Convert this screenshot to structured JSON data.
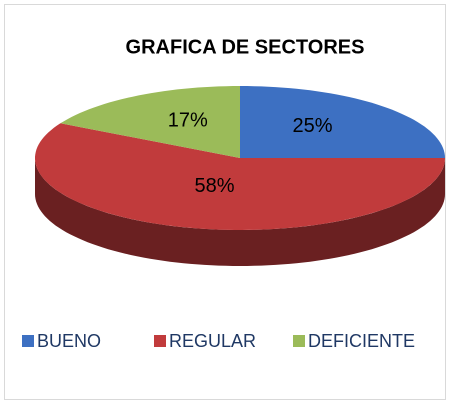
{
  "chart_data": {
    "type": "pie",
    "title": "GRAFICA DE SECTORES",
    "categories": [
      "BUENO",
      "REGULAR",
      "DEFICIENTE"
    ],
    "values": [
      25,
      58,
      17
    ],
    "value_labels": [
      "25%",
      "58%",
      "17%"
    ],
    "colors": [
      "#3d70c2",
      "#c13b3c",
      "#9bbb59"
    ],
    "legend": "bottom"
  }
}
